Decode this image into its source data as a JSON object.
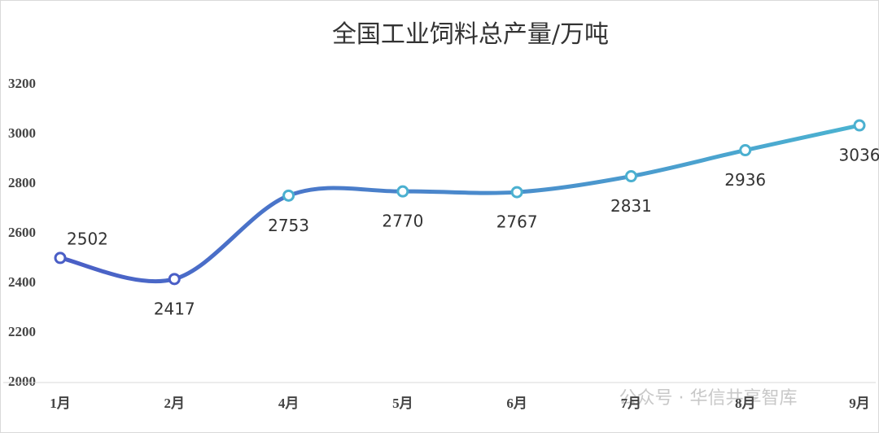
{
  "chart_data": {
    "type": "line",
    "title": "全国工业饲料总产量/万吨",
    "categories": [
      "1月",
      "2月",
      "4月",
      "5月",
      "6月",
      "7月",
      "8月",
      "9月"
    ],
    "series": [
      {
        "name": "全国工业饲料总产量",
        "color": "#4bb0d0",
        "gradient": [
          "#4a5ec6",
          "#4bb3d1"
        ],
        "values": [
          2502,
          2417,
          2753,
          2770,
          2767,
          2831,
          2936,
          3036
        ]
      }
    ],
    "ylim": [
      2000,
      3200
    ],
    "yticks": [
      2000,
      2200,
      2400,
      2600,
      2800,
      3000,
      3200
    ],
    "grid": false,
    "smooth": true,
    "watermark": "公众号 · 华信共享智库"
  }
}
